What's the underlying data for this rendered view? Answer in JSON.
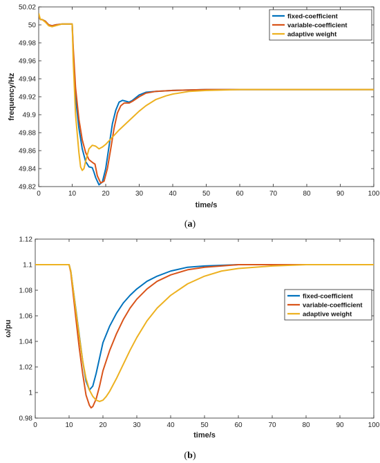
{
  "chart_data": [
    {
      "type": "line",
      "caption_letter": "a",
      "xlabel": "time/s",
      "ylabel": "frequency/Hz",
      "xlim": [
        0,
        100
      ],
      "ylim": [
        49.82,
        50.02
      ],
      "xticks": [
        "0",
        "10",
        "20",
        "30",
        "40",
        "50",
        "60",
        "70",
        "80",
        "90",
        "100"
      ],
      "yticks": [
        "49.82",
        "49.84",
        "49.86",
        "49.88",
        "49.9",
        "49.92",
        "49.94",
        "49.96",
        "49.98",
        "50",
        "50.02"
      ],
      "grid": false,
      "legend_position": "top-right",
      "series": [
        {
          "name": "fixed-coefficient",
          "color": "#0072BD",
          "points": [
            [
              0,
              50.01
            ],
            [
              0.5,
              50.006
            ],
            [
              1,
              50.006
            ],
            [
              2,
              50.004
            ],
            [
              3,
              50.0
            ],
            [
              4,
              49.999
            ],
            [
              5,
              50.0
            ],
            [
              7,
              50.001
            ],
            [
              10,
              50.001
            ],
            [
              10.3,
              49.97
            ],
            [
              11,
              49.92
            ],
            [
              12,
              49.885
            ],
            [
              13,
              49.862
            ],
            [
              14,
              49.848
            ],
            [
              15,
              49.842
            ],
            [
              16,
              49.841
            ],
            [
              16.5,
              49.836
            ],
            [
              17,
              49.83
            ],
            [
              18,
              49.822
            ],
            [
              19,
              49.825
            ],
            [
              20,
              49.84
            ],
            [
              21,
              49.865
            ],
            [
              22,
              49.89
            ],
            [
              23,
              49.905
            ],
            [
              24,
              49.914
            ],
            [
              25,
              49.916
            ],
            [
              26,
              49.915
            ],
            [
              27,
              49.914
            ],
            [
              28,
              49.916
            ],
            [
              30,
              49.922
            ],
            [
              32,
              49.925
            ],
            [
              35,
              49.926
            ],
            [
              40,
              49.927
            ],
            [
              50,
              49.928
            ],
            [
              60,
              49.928
            ],
            [
              80,
              49.928
            ],
            [
              100,
              49.928
            ]
          ]
        },
        {
          "name": "variable-coefficient",
          "color": "#D95319",
          "points": [
            [
              0,
              50.01
            ],
            [
              0.5,
              50.006
            ],
            [
              1,
              50.006
            ],
            [
              2,
              50.004
            ],
            [
              3,
              50.0
            ],
            [
              4,
              49.999
            ],
            [
              5,
              50.0
            ],
            [
              7,
              50.001
            ],
            [
              10,
              50.001
            ],
            [
              10.3,
              49.975
            ],
            [
              11,
              49.93
            ],
            [
              12,
              49.895
            ],
            [
              13,
              49.872
            ],
            [
              14,
              49.858
            ],
            [
              15,
              49.85
            ],
            [
              16,
              49.847
            ],
            [
              16.8,
              49.845
            ],
            [
              17.5,
              49.832
            ],
            [
              18.5,
              49.824
            ],
            [
              19.5,
              49.826
            ],
            [
              20.5,
              49.84
            ],
            [
              21.5,
              49.862
            ],
            [
              22.5,
              49.885
            ],
            [
              23.5,
              49.902
            ],
            [
              24.5,
              49.91
            ],
            [
              25.5,
              49.913
            ],
            [
              27,
              49.913
            ],
            [
              28,
              49.915
            ],
            [
              30,
              49.92
            ],
            [
              32,
              49.924
            ],
            [
              35,
              49.926
            ],
            [
              40,
              49.927
            ],
            [
              50,
              49.928
            ],
            [
              60,
              49.928
            ],
            [
              80,
              49.928
            ],
            [
              100,
              49.928
            ]
          ]
        },
        {
          "name": "adaptive weight",
          "color": "#EDB120",
          "points": [
            [
              0,
              50.013
            ],
            [
              0.5,
              50.006
            ],
            [
              1,
              50.006
            ],
            [
              2,
              50.003
            ],
            [
              3,
              49.999
            ],
            [
              4,
              49.998
            ],
            [
              5,
              49.999
            ],
            [
              7,
              50.001
            ],
            [
              10,
              50.001
            ],
            [
              10.3,
              49.96
            ],
            [
              11,
              49.9
            ],
            [
              12,
              49.858
            ],
            [
              12.5,
              49.842
            ],
            [
              13,
              49.838
            ],
            [
              13.5,
              49.84
            ],
            [
              14,
              49.848
            ],
            [
              15,
              49.862
            ],
            [
              16,
              49.866
            ],
            [
              17,
              49.865
            ],
            [
              18,
              49.862
            ],
            [
              19,
              49.864
            ],
            [
              20,
              49.867
            ],
            [
              22,
              49.875
            ],
            [
              24,
              49.883
            ],
            [
              26,
              49.89
            ],
            [
              28,
              49.897
            ],
            [
              30,
              49.904
            ],
            [
              32,
              49.91
            ],
            [
              35,
              49.917
            ],
            [
              38,
              49.921
            ],
            [
              40,
              49.923
            ],
            [
              45,
              49.926
            ],
            [
              50,
              49.927
            ],
            [
              60,
              49.928
            ],
            [
              80,
              49.928
            ],
            [
              100,
              49.928
            ]
          ]
        }
      ]
    },
    {
      "type": "line",
      "caption_letter": "b",
      "xlabel": "time/s",
      "ylabel": "ω/pu",
      "xlim": [
        0,
        100
      ],
      "ylim": [
        0.98,
        1.12
      ],
      "xticks": [
        "0",
        "10",
        "20",
        "30",
        "40",
        "50",
        "60",
        "70",
        "80",
        "90",
        "100"
      ],
      "yticks": [
        "0.98",
        "1",
        "1.02",
        "1.04",
        "1.06",
        "1.08",
        "1.1",
        "1.12"
      ],
      "grid": false,
      "legend_position": "center-right",
      "series": [
        {
          "name": "fixed-coefficient",
          "color": "#0072BD",
          "points": [
            [
              0,
              1.1
            ],
            [
              10,
              1.1
            ],
            [
              10.5,
              1.095
            ],
            [
              11,
              1.085
            ],
            [
              12,
              1.065
            ],
            [
              13,
              1.045
            ],
            [
              14,
              1.025
            ],
            [
              15,
              1.009
            ],
            [
              16,
              1.002
            ],
            [
              17,
              1.005
            ],
            [
              18,
              1.015
            ],
            [
              19,
              1.027
            ],
            [
              20,
              1.039
            ],
            [
              22,
              1.052
            ],
            [
              24,
              1.062
            ],
            [
              26,
              1.07
            ],
            [
              28,
              1.076
            ],
            [
              30,
              1.081
            ],
            [
              33,
              1.087
            ],
            [
              36,
              1.091
            ],
            [
              40,
              1.095
            ],
            [
              45,
              1.098
            ],
            [
              50,
              1.099
            ],
            [
              60,
              1.1
            ],
            [
              100,
              1.1
            ]
          ]
        },
        {
          "name": "variable-coefficient",
          "color": "#D95319",
          "points": [
            [
              0,
              1.1
            ],
            [
              10,
              1.1
            ],
            [
              10.5,
              1.094
            ],
            [
              11,
              1.082
            ],
            [
              12,
              1.058
            ],
            [
              13,
              1.035
            ],
            [
              14,
              1.015
            ],
            [
              15,
              0.998
            ],
            [
              16,
              0.99
            ],
            [
              16.5,
              0.988
            ],
            [
              17,
              0.989
            ],
            [
              18,
              0.995
            ],
            [
              19,
              1.005
            ],
            [
              20,
              1.017
            ],
            [
              22,
              1.033
            ],
            [
              24,
              1.046
            ],
            [
              26,
              1.057
            ],
            [
              28,
              1.066
            ],
            [
              30,
              1.073
            ],
            [
              33,
              1.081
            ],
            [
              36,
              1.087
            ],
            [
              40,
              1.092
            ],
            [
              45,
              1.096
            ],
            [
              50,
              1.098
            ],
            [
              60,
              1.1
            ],
            [
              100,
              1.1
            ]
          ]
        },
        {
          "name": "adaptive weight",
          "color": "#EDB120",
          "points": [
            [
              0,
              1.1
            ],
            [
              10,
              1.1
            ],
            [
              10.5,
              1.095
            ],
            [
              11,
              1.085
            ],
            [
              12,
              1.064
            ],
            [
              13,
              1.044
            ],
            [
              14,
              1.025
            ],
            [
              15,
              1.011
            ],
            [
              16,
              1.002
            ],
            [
              17,
              0.997
            ],
            [
              18,
              0.994
            ],
            [
              19,
              0.993
            ],
            [
              20,
              0.994
            ],
            [
              21,
              0.997
            ],
            [
              22,
              1.001
            ],
            [
              24,
              1.011
            ],
            [
              26,
              1.022
            ],
            [
              28,
              1.033
            ],
            [
              30,
              1.043
            ],
            [
              33,
              1.056
            ],
            [
              36,
              1.066
            ],
            [
              40,
              1.076
            ],
            [
              45,
              1.085
            ],
            [
              50,
              1.091
            ],
            [
              55,
              1.095
            ],
            [
              60,
              1.097
            ],
            [
              70,
              1.099
            ],
            [
              80,
              1.1
            ],
            [
              100,
              1.1
            ]
          ]
        }
      ]
    }
  ]
}
